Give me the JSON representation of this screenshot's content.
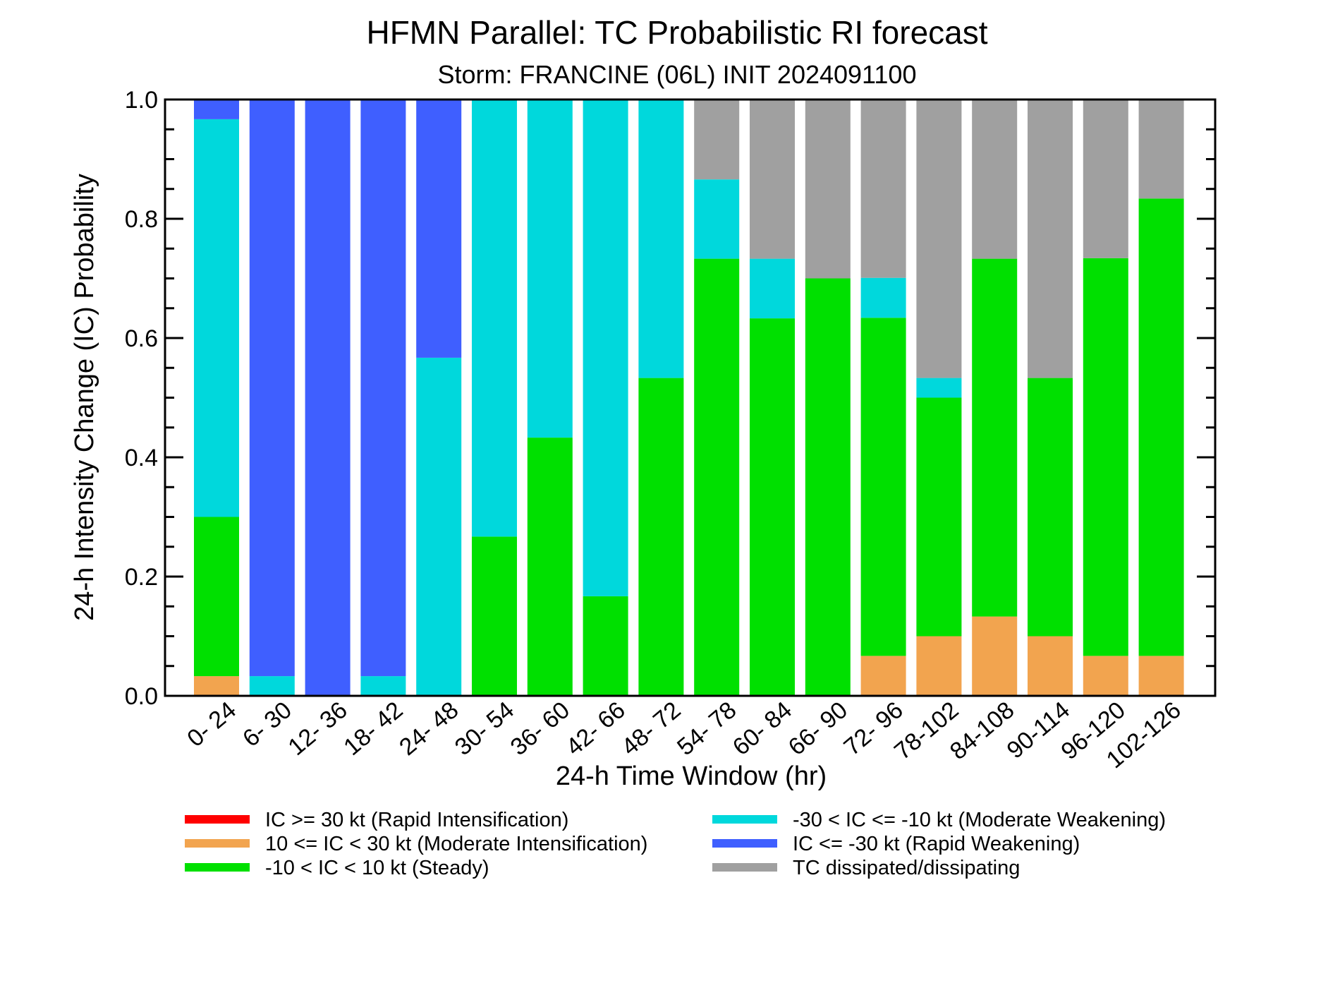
{
  "chart_data": {
    "type": "bar",
    "stacked": true,
    "title": "HFMN Parallel: TC Probabilistic RI forecast",
    "subtitle": "Storm: FRANCINE (06L) INIT 2024091100",
    "xlabel": "24-h Time Window (hr)",
    "ylabel": "24-h Intensity Change (IC) Probability",
    "ylim": [
      0,
      1
    ],
    "yticks": [
      "0.0",
      "0.2",
      "0.4",
      "0.6",
      "0.8",
      "1.0"
    ],
    "categories": [
      "0- 24",
      "6- 30",
      "12- 36",
      "18- 42",
      "24- 48",
      "30- 54",
      "36- 60",
      "42- 66",
      "48- 72",
      "54- 78",
      "60- 84",
      "66- 90",
      "72- 96",
      "78-102",
      "84-108",
      "90-114",
      "96-120",
      "102-126"
    ],
    "series": [
      {
        "name": "IC >= 30 kt (Rapid Intensification)",
        "color": "#ff0000",
        "values": [
          0,
          0,
          0,
          0,
          0,
          0,
          0,
          0,
          0,
          0,
          0,
          0,
          0,
          0,
          0,
          0,
          0,
          0
        ]
      },
      {
        "name": "10 <= IC < 30 kt (Moderate Intensification)",
        "color": "#f2a44f",
        "values": [
          0.033,
          0,
          0,
          0,
          0,
          0,
          0,
          0,
          0,
          0,
          0,
          0,
          0.067,
          0.1,
          0.133,
          0.1,
          0.067,
          0.067
        ]
      },
      {
        "name": "-10 < IC < 10 kt (Steady)",
        "color": "#00e000",
        "values": [
          0.267,
          0,
          0,
          0,
          0,
          0.267,
          0.433,
          0.167,
          0.533,
          0.733,
          0.633,
          0.7,
          0.567,
          0.4,
          0.6,
          0.433,
          0.667,
          0.767
        ]
      },
      {
        "name": "-30 < IC <= -10 kt (Moderate Weakening)",
        "color": "#00d8dc",
        "values": [
          0.667,
          0.033,
          0,
          0.033,
          0.567,
          0.733,
          0.567,
          0.833,
          0.467,
          0.133,
          0.1,
          0,
          0.067,
          0.033,
          0,
          0,
          0,
          0
        ]
      },
      {
        "name": "IC <= -30 kt (Rapid Weakening)",
        "color": "#3f5fff",
        "values": [
          0.033,
          0.967,
          1.0,
          0.967,
          0.433,
          0,
          0,
          0,
          0,
          0,
          0,
          0,
          0,
          0,
          0,
          0,
          0,
          0
        ]
      },
      {
        "name": "TC dissipated/dissipating",
        "color": "#a0a0a0",
        "values": [
          0,
          0,
          0,
          0,
          0,
          0,
          0,
          0,
          0,
          0.133,
          0.267,
          0.3,
          0.3,
          0.467,
          0.267,
          0.467,
          0.267,
          0.167
        ]
      }
    ],
    "grid": false,
    "legend": "bottom"
  }
}
